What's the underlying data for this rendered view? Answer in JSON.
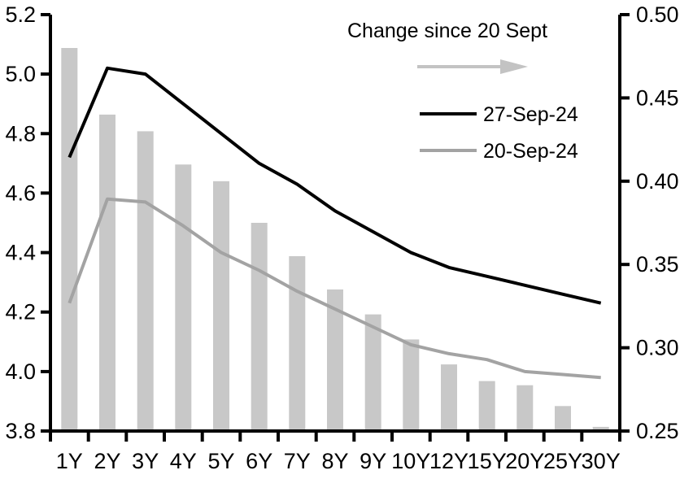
{
  "legend": {
    "change_label": "Change since 20 Sept",
    "series1_label": "27-Sep-24",
    "series2_label": "20-Sep-24"
  },
  "colors": {
    "bar": "#c8c8c8",
    "line_27sep": "#000000",
    "line_20sep": "#a3a3a3",
    "arrow": "#c3c3c3",
    "axis": "#000000"
  },
  "chart_data": {
    "type": "combo-bar-line",
    "title": "",
    "categories": [
      "1Y",
      "2Y",
      "3Y",
      "4Y",
      "5Y",
      "6Y",
      "7Y",
      "8Y",
      "9Y",
      "10Y",
      "12Y",
      "15Y",
      "20Y",
      "25Y",
      "30Y"
    ],
    "series": [
      {
        "name": "Change since 20 Sept",
        "type": "bar",
        "axis": "right",
        "color": "#c8c8c8",
        "values": [
          0.48,
          0.44,
          0.43,
          0.41,
          0.4,
          0.375,
          0.355,
          0.335,
          0.32,
          0.305,
          0.29,
          0.28,
          0.2775,
          0.265,
          0.2525
        ]
      },
      {
        "name": "27-Sep-24",
        "type": "line",
        "axis": "left",
        "color": "#000000",
        "values": [
          4.72,
          5.02,
          5.0,
          4.9,
          4.8,
          4.7,
          4.63,
          4.54,
          4.47,
          4.4,
          4.35,
          4.32,
          4.29,
          4.26,
          4.23
        ]
      },
      {
        "name": "20-Sep-24",
        "type": "line",
        "axis": "left",
        "color": "#a3a3a3",
        "values": [
          4.23,
          4.58,
          4.57,
          4.49,
          4.4,
          4.34,
          4.27,
          4.21,
          4.15,
          4.09,
          4.06,
          4.04,
          4.0,
          3.99,
          3.98
        ]
      }
    ],
    "left_axis": {
      "min": 3.8,
      "max": 5.2,
      "tick_labels": [
        "5.2",
        "5.0",
        "4.8",
        "4.6",
        "4.4",
        "4.2",
        "4.0",
        "3.8"
      ]
    },
    "right_axis": {
      "min": 0.25,
      "max": 0.5,
      "tick_labels": [
        "0.50",
        "0.45",
        "0.40",
        "0.35",
        "0.30",
        "0.25"
      ]
    },
    "grid": false,
    "legend_position": "inside-top-center-right"
  }
}
